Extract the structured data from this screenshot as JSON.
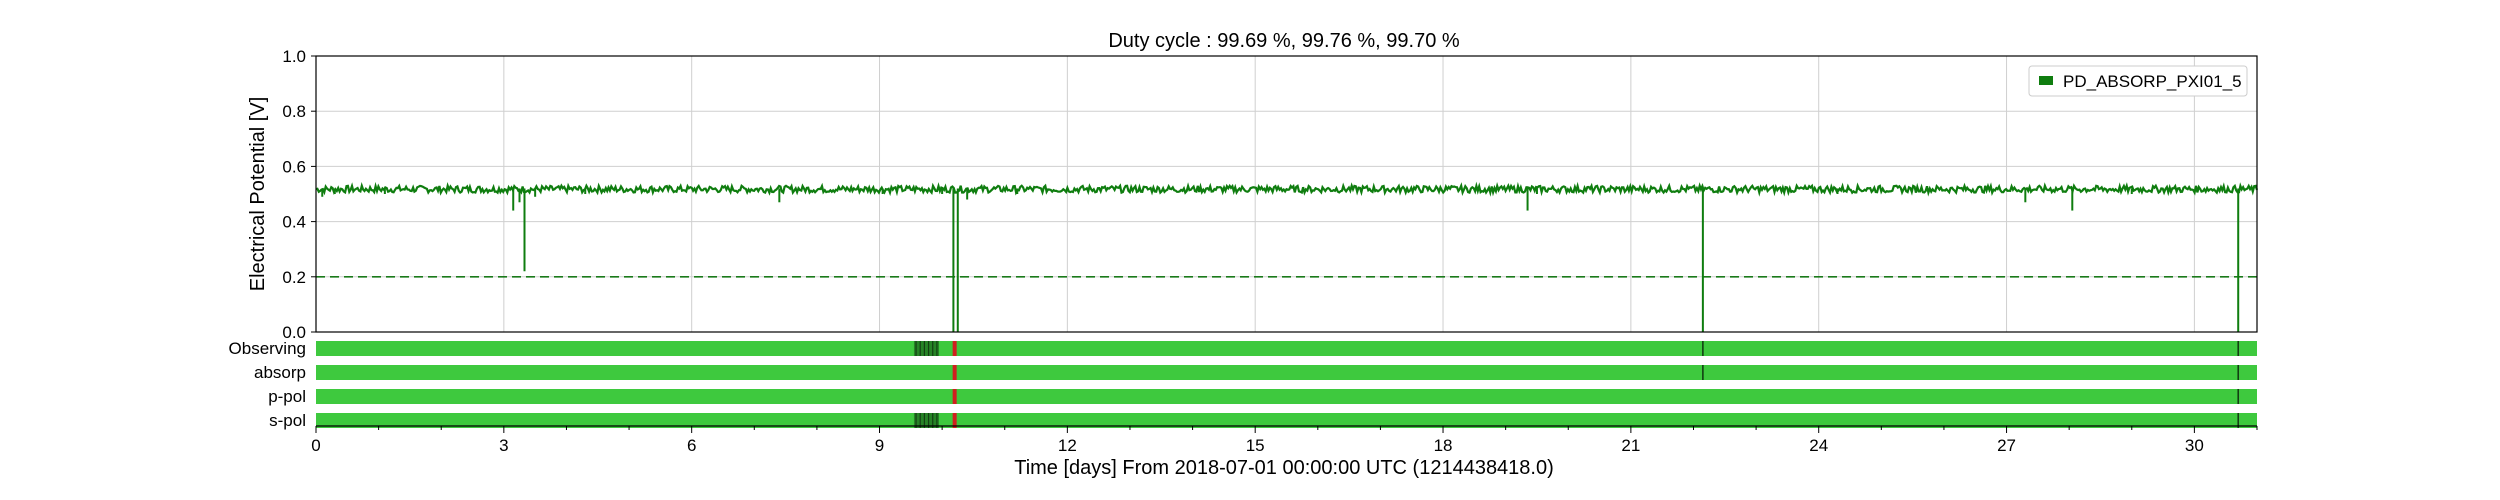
{
  "chart_data": {
    "type": "line",
    "title": "Duty cycle : 99.69 %, 99.76 %, 99.70 %",
    "xlabel": "Time [days] From 2018-07-01 00:00:00 UTC (1214438418.0)",
    "ylabel": "Electrical Potential [V]",
    "xlim": [
      0,
      31
    ],
    "ylim": [
      0,
      1.0
    ],
    "x_ticks": [
      0,
      3,
      6,
      9,
      12,
      15,
      18,
      21,
      24,
      27,
      30
    ],
    "y_ticks": [
      0.0,
      0.2,
      0.4,
      0.6,
      0.8,
      1.0
    ],
    "y_tick_labels": [
      "0.0",
      "0.2",
      "0.4",
      "0.6",
      "0.8",
      "1.0"
    ],
    "grid": true,
    "legend_position": "top-right",
    "threshold": {
      "y": 0.2,
      "style": "dashed",
      "color": "#1a7a1a"
    },
    "series": [
      {
        "name": "PD_ABSORP_PXI01_5",
        "color": "#0f7d0f",
        "baseline": 0.52,
        "baseline_range": [
          0.505,
          0.53
        ],
        "dips": [
          {
            "x": 0.1,
            "y": 0.49
          },
          {
            "x": 0.3,
            "y": 0.5
          },
          {
            "x": 1.1,
            "y": 0.5
          },
          {
            "x": 3.15,
            "y": 0.44
          },
          {
            "x": 3.25,
            "y": 0.47
          },
          {
            "x": 3.33,
            "y": 0.22
          },
          {
            "x": 3.5,
            "y": 0.49
          },
          {
            "x": 4.3,
            "y": 0.5
          },
          {
            "x": 7.4,
            "y": 0.47
          },
          {
            "x": 9.05,
            "y": 0.5
          },
          {
            "x": 10.0,
            "y": 0.5
          },
          {
            "x": 10.18,
            "y": 0.0
          },
          {
            "x": 10.25,
            "y": 0.0
          },
          {
            "x": 10.4,
            "y": 0.48
          },
          {
            "x": 11.2,
            "y": 0.5
          },
          {
            "x": 19.35,
            "y": 0.44
          },
          {
            "x": 19.5,
            "y": 0.5
          },
          {
            "x": 22.15,
            "y": 0.0
          },
          {
            "x": 24.3,
            "y": 0.5
          },
          {
            "x": 27.3,
            "y": 0.47
          },
          {
            "x": 28.05,
            "y": 0.44
          },
          {
            "x": 29.0,
            "y": 0.5
          },
          {
            "x": 30.7,
            "y": 0.0
          }
        ]
      }
    ],
    "segments": {
      "rows": [
        "Observing",
        "absorp",
        "p-pol",
        "s-pol"
      ],
      "active_color": "#3ec93e",
      "flag_color": "#1f6b1f",
      "red_color": "#d11f1f",
      "red_marks": [
        {
          "row": 0,
          "x": 10.2
        },
        {
          "row": 1,
          "x": 10.2
        },
        {
          "row": 2,
          "x": 10.2
        },
        {
          "row": 3,
          "x": 10.2
        }
      ],
      "dark_marks": [
        {
          "row": 0,
          "start": 9.55,
          "end": 9.95
        },
        {
          "row": 0,
          "x": 22.15
        },
        {
          "row": 0,
          "x": 30.7
        },
        {
          "row": 1,
          "x": 22.15
        },
        {
          "row": 1,
          "x": 30.7
        },
        {
          "row": 2,
          "x": 30.7
        },
        {
          "row": 3,
          "start": 9.55,
          "end": 9.95
        },
        {
          "row": 3,
          "x": 30.7
        }
      ]
    }
  }
}
